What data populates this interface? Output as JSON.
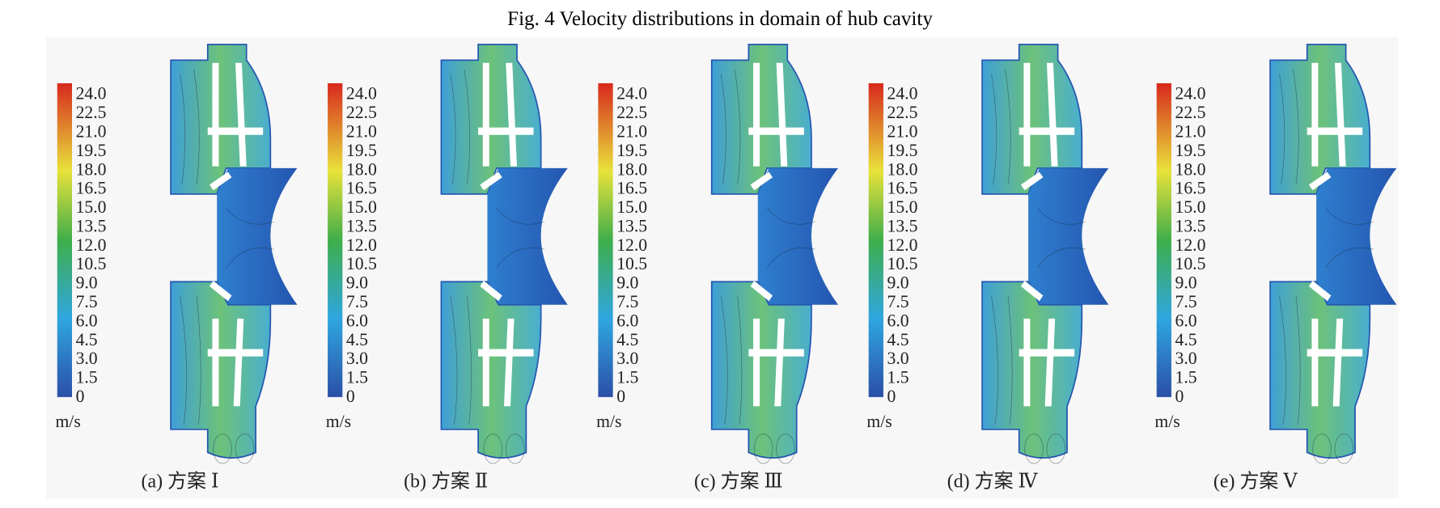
{
  "title": "Fig. 4    Velocity distributions in domain of hub cavity",
  "colorbar": {
    "labels": [
      "24.0",
      "22.5",
      "21.0",
      "19.5",
      "18.0",
      "16.5",
      "15.0",
      "13.5",
      "12.0",
      "10.5",
      "9.0",
      "7.5",
      "6.0",
      "4.5",
      "3.0",
      "1.5",
      "0"
    ],
    "unit": "m/s"
  },
  "panels": [
    {
      "caption": "(a) 方案 Ⅰ"
    },
    {
      "caption": "(b) 方案 Ⅱ"
    },
    {
      "caption": "(c) 方案 Ⅲ"
    },
    {
      "caption": "(d) 方案 Ⅳ"
    },
    {
      "caption": "(e) 方案 Ⅴ"
    }
  ]
}
